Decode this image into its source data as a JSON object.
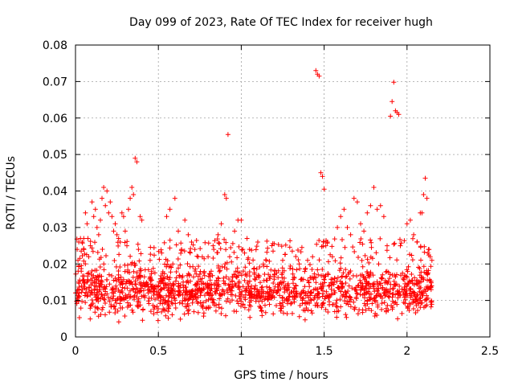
{
  "chart_data": {
    "type": "scatter",
    "title": "Day 099 of 2023, Rate Of TEC Index for receiver hugh",
    "xlabel": "GPS time / hours",
    "ylabel": "ROTI / TECUs",
    "xlim": [
      0,
      2.5
    ],
    "ylim": [
      0,
      0.08
    ],
    "x_ticks": [
      "0",
      "0.5",
      "1",
      "1.5",
      "2",
      "2.5"
    ],
    "y_ticks": [
      "0",
      "0.01",
      "0.02",
      "0.03",
      "0.04",
      "0.05",
      "0.06",
      "0.07",
      "0.08"
    ],
    "grid": true,
    "marker": "+",
    "color": "#ff0000",
    "points": [
      [
        0.01,
        0.024
      ],
      [
        0.015,
        0.021
      ],
      [
        0.02,
        0.026
      ],
      [
        0.03,
        0.027
      ],
      [
        0.035,
        0.018
      ],
      [
        0.04,
        0.026
      ],
      [
        0.05,
        0.027
      ],
      [
        0.06,
        0.034
      ],
      [
        0.07,
        0.031
      ],
      [
        0.075,
        0.027
      ],
      [
        0.08,
        0.022
      ],
      [
        0.09,
        0.025
      ],
      [
        0.1,
        0.037
      ],
      [
        0.11,
        0.033
      ],
      [
        0.12,
        0.035
      ],
      [
        0.13,
        0.03
      ],
      [
        0.14,
        0.028
      ],
      [
        0.15,
        0.032
      ],
      [
        0.16,
        0.038
      ],
      [
        0.17,
        0.041
      ],
      [
        0.18,
        0.036
      ],
      [
        0.19,
        0.04
      ],
      [
        0.2,
        0.034
      ],
      [
        0.21,
        0.037
      ],
      [
        0.22,
        0.033
      ],
      [
        0.23,
        0.029
      ],
      [
        0.24,
        0.031
      ],
      [
        0.25,
        0.028
      ],
      [
        0.26,
        0.027
      ],
      [
        0.27,
        0.026
      ],
      [
        0.28,
        0.034
      ],
      [
        0.29,
        0.033
      ],
      [
        0.3,
        0.029
      ],
      [
        0.31,
        0.025
      ],
      [
        0.32,
        0.035
      ],
      [
        0.33,
        0.038
      ],
      [
        0.34,
        0.041
      ],
      [
        0.35,
        0.039
      ],
      [
        0.36,
        0.049
      ],
      [
        0.37,
        0.048
      ],
      [
        0.38,
        0.024
      ],
      [
        0.39,
        0.033
      ],
      [
        0.4,
        0.032
      ],
      [
        0.45,
        0.021
      ],
      [
        0.52,
        0.023
      ],
      [
        0.55,
        0.033
      ],
      [
        0.57,
        0.035
      ],
      [
        0.6,
        0.038
      ],
      [
        0.62,
        0.029
      ],
      [
        0.64,
        0.024
      ],
      [
        0.66,
        0.032
      ],
      [
        0.68,
        0.028
      ],
      [
        0.7,
        0.026
      ],
      [
        0.72,
        0.024
      ],
      [
        0.74,
        0.022
      ],
      [
        0.8,
        0.022
      ],
      [
        0.83,
        0.025
      ],
      [
        0.86,
        0.028
      ],
      [
        0.88,
        0.031
      ],
      [
        0.9,
        0.039
      ],
      [
        0.91,
        0.038
      ],
      [
        0.92,
        0.0555
      ],
      [
        0.93,
        0.022
      ],
      [
        0.96,
        0.029
      ],
      [
        0.98,
        0.032
      ],
      [
        1.0,
        0.032
      ],
      [
        1.02,
        0.023
      ],
      [
        1.05,
        0.024
      ],
      [
        1.1,
        0.026
      ],
      [
        1.15,
        0.021
      ],
      [
        1.25,
        0.021
      ],
      [
        1.35,
        0.02
      ],
      [
        1.4,
        0.021
      ],
      [
        1.43,
        0.022
      ],
      [
        1.45,
        0.073
      ],
      [
        1.46,
        0.072
      ],
      [
        1.47,
        0.0715
      ],
      [
        1.48,
        0.045
      ],
      [
        1.49,
        0.044
      ],
      [
        1.5,
        0.0405
      ],
      [
        1.51,
        0.025
      ],
      [
        1.52,
        0.026
      ],
      [
        1.55,
        0.022
      ],
      [
        1.58,
        0.03
      ],
      [
        1.6,
        0.033
      ],
      [
        1.62,
        0.035
      ],
      [
        1.64,
        0.03
      ],
      [
        1.66,
        0.028
      ],
      [
        1.68,
        0.038
      ],
      [
        1.7,
        0.037
      ],
      [
        1.72,
        0.031
      ],
      [
        1.74,
        0.029
      ],
      [
        1.76,
        0.034
      ],
      [
        1.78,
        0.036
      ],
      [
        1.8,
        0.041
      ],
      [
        1.82,
        0.035
      ],
      [
        1.84,
        0.036
      ],
      [
        1.86,
        0.033
      ],
      [
        1.88,
        0.025
      ],
      [
        1.9,
        0.0605
      ],
      [
        1.91,
        0.0645
      ],
      [
        1.92,
        0.0698
      ],
      [
        1.93,
        0.062
      ],
      [
        1.94,
        0.0615
      ],
      [
        1.95,
        0.061
      ],
      [
        1.96,
        0.025
      ],
      [
        2.0,
        0.031
      ],
      [
        2.02,
        0.032
      ],
      [
        2.04,
        0.028
      ],
      [
        2.06,
        0.026
      ],
      [
        2.08,
        0.034
      ],
      [
        2.09,
        0.034
      ],
      [
        2.1,
        0.039
      ],
      [
        2.11,
        0.0435
      ],
      [
        2.12,
        0.038
      ],
      [
        2.13,
        0.024
      ],
      [
        2.14,
        0.022
      ],
      [
        2.15,
        0.021
      ]
    ],
    "band": {
      "x_range": [
        0.0,
        2.15
      ],
      "y_center": 0.0125,
      "y_spread": 0.0055,
      "count": 1400,
      "sparse_upper_range": [
        0.016,
        0.027
      ],
      "sparse_count": 260
    }
  }
}
